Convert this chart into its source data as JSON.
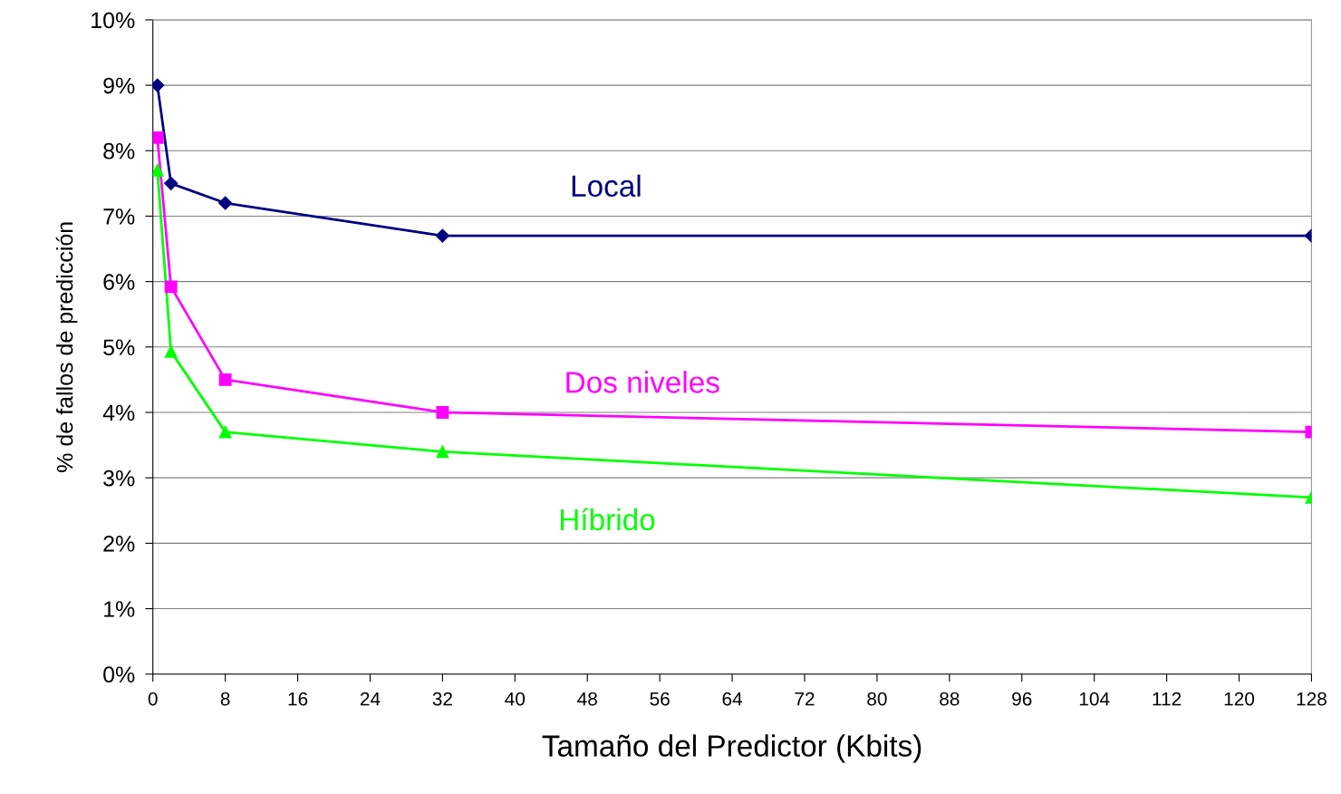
{
  "chart_data": {
    "type": "line",
    "xlabel": "Tamaño del Predictor (Kbits)",
    "ylabel": "% de fallos de predicción",
    "x": [
      0.5,
      2,
      8,
      32,
      128
    ],
    "series": [
      {
        "name": "Local",
        "color": "#000080",
        "marker": "diamond",
        "values": [
          9.0,
          7.5,
          7.2,
          6.7,
          6.7
        ]
      },
      {
        "name": "Dos niveles",
        "color": "#ff00ff",
        "marker": "square",
        "values": [
          8.2,
          5.92,
          4.5,
          4.0,
          3.7
        ]
      },
      {
        "name": "Híbrido",
        "color": "#00ff00",
        "marker": "triangle",
        "values": [
          7.7,
          4.93,
          3.7,
          3.4,
          2.7
        ]
      }
    ],
    "xlim": [
      0,
      128
    ],
    "xticks": [
      0,
      8,
      16,
      24,
      32,
      40,
      48,
      56,
      64,
      72,
      80,
      88,
      96,
      104,
      112,
      120,
      128
    ],
    "ylim": [
      0,
      10
    ],
    "yticks": [
      {
        "value": 0,
        "label": "0%"
      },
      {
        "value": 1,
        "label": "1%"
      },
      {
        "value": 2,
        "label": "2%"
      },
      {
        "value": 3,
        "label": "3%"
      },
      {
        "value": 4,
        "label": "4%"
      },
      {
        "value": 5,
        "label": "5%"
      },
      {
        "value": 6,
        "label": "6%"
      },
      {
        "value": 7,
        "label": "7%"
      },
      {
        "value": 8,
        "label": "8%"
      },
      {
        "value": 9,
        "label": "9%"
      },
      {
        "value": 10,
        "label": "10%"
      }
    ],
    "grid": "y",
    "legend": false,
    "line_style": "solid"
  }
}
